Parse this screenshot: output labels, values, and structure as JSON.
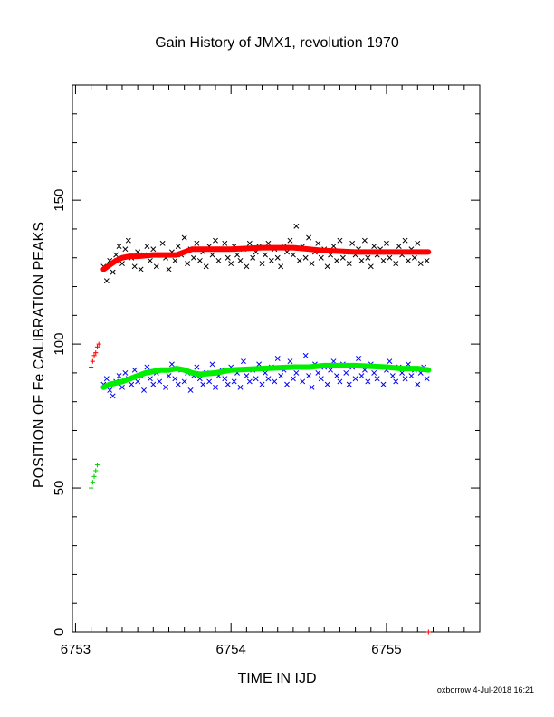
{
  "chart_data": {
    "type": "scatter",
    "title": "Gain History of JMX1, revolution 1970",
    "xlabel": "TIME IN IJD",
    "ylabel": "POSITION OF Fe CALIBRATION PEAKS",
    "xlim": [
      6752.98,
      6755.6
    ],
    "ylim": [
      0,
      190
    ],
    "xticks": [
      6753,
      6754,
      6755
    ],
    "yticks": [
      0,
      50,
      100,
      150
    ],
    "grid": false,
    "legend": "none",
    "series": [
      {
        "color": "#000000",
        "marker": "x",
        "x": [
          6753.18,
          6753.2,
          6753.22,
          6753.24,
          6753.26,
          6753.28,
          6753.3,
          6753.32,
          6753.34,
          6753.36,
          6753.38,
          6753.4,
          6753.42,
          6753.44,
          6753.46,
          6753.48,
          6753.5,
          6753.52,
          6753.54,
          6753.56,
          6753.58,
          6753.6,
          6753.62,
          6753.64,
          6753.66,
          6753.68,
          6753.7,
          6753.72,
          6753.74,
          6753.76,
          6753.78,
          6753.8,
          6753.82,
          6753.84,
          6753.86,
          6753.88,
          6753.9,
          6753.92,
          6753.94,
          6753.96,
          6753.98,
          6754.0,
          6754.02,
          6754.04,
          6754.06,
          6754.08,
          6754.1,
          6754.12,
          6754.14,
          6754.16,
          6754.18,
          6754.2,
          6754.22,
          6754.24,
          6754.26,
          6754.28,
          6754.3,
          6754.32,
          6754.34,
          6754.36,
          6754.38,
          6754.4,
          6754.42,
          6754.44,
          6754.46,
          6754.48,
          6754.5,
          6754.52,
          6754.54,
          6754.56,
          6754.58,
          6754.6,
          6754.62,
          6754.64,
          6754.66,
          6754.68,
          6754.7,
          6754.72,
          6754.74,
          6754.76,
          6754.78,
          6754.8,
          6754.82,
          6754.84,
          6754.86,
          6754.88,
          6754.9,
          6754.92,
          6754.94,
          6754.96,
          6754.98,
          6755.0,
          6755.02,
          6755.04,
          6755.06,
          6755.08,
          6755.1,
          6755.12,
          6755.14,
          6755.16,
          6755.18,
          6755.2,
          6755.22,
          6755.24,
          6755.26
        ],
        "y": [
          127,
          122,
          129,
          125,
          131,
          134,
          128,
          133,
          136,
          130,
          127,
          132,
          126,
          131,
          134,
          129,
          133,
          127,
          131,
          135,
          130,
          126,
          132,
          129,
          134,
          131,
          137,
          128,
          133,
          130,
          135,
          129,
          132,
          127,
          134,
          131,
          136,
          129,
          133,
          135,
          130,
          128,
          134,
          131,
          129,
          133,
          127,
          135,
          130,
          132,
          134,
          128,
          131,
          135,
          129,
          133,
          130,
          127,
          134,
          132,
          136,
          131,
          141,
          129,
          134,
          130,
          137,
          128,
          132,
          135,
          130,
          133,
          127,
          131,
          134,
          129,
          136,
          130,
          132,
          128,
          135,
          131,
          133,
          129,
          136,
          130,
          127,
          134,
          131,
          133,
          129,
          135,
          130,
          132,
          128,
          134,
          131,
          136,
          129,
          133,
          130,
          135,
          128,
          132,
          129
        ]
      },
      {
        "color": "#0000ff",
        "marker": "x",
        "x": [
          6753.18,
          6753.2,
          6753.22,
          6753.24,
          6753.26,
          6753.28,
          6753.3,
          6753.32,
          6753.34,
          6753.36,
          6753.38,
          6753.4,
          6753.42,
          6753.44,
          6753.46,
          6753.48,
          6753.5,
          6753.52,
          6753.54,
          6753.56,
          6753.58,
          6753.6,
          6753.62,
          6753.64,
          6753.66,
          6753.68,
          6753.7,
          6753.72,
          6753.74,
          6753.76,
          6753.78,
          6753.8,
          6753.82,
          6753.84,
          6753.86,
          6753.88,
          6753.9,
          6753.92,
          6753.94,
          6753.96,
          6753.98,
          6754.0,
          6754.02,
          6754.04,
          6754.06,
          6754.08,
          6754.1,
          6754.12,
          6754.14,
          6754.16,
          6754.18,
          6754.2,
          6754.22,
          6754.24,
          6754.26,
          6754.28,
          6754.3,
          6754.32,
          6754.34,
          6754.36,
          6754.38,
          6754.4,
          6754.42,
          6754.44,
          6754.46,
          6754.48,
          6754.5,
          6754.52,
          6754.54,
          6754.56,
          6754.58,
          6754.6,
          6754.62,
          6754.64,
          6754.66,
          6754.68,
          6754.7,
          6754.72,
          6754.74,
          6754.76,
          6754.78,
          6754.8,
          6754.82,
          6754.84,
          6754.86,
          6754.88,
          6754.9,
          6754.92,
          6754.94,
          6754.96,
          6754.98,
          6755.0,
          6755.02,
          6755.04,
          6755.06,
          6755.08,
          6755.1,
          6755.12,
          6755.14,
          6755.16,
          6755.18,
          6755.2,
          6755.22,
          6755.24,
          6755.26
        ],
        "y": [
          86,
          88,
          84,
          82,
          87,
          89,
          85,
          90,
          88,
          86,
          91,
          87,
          89,
          84,
          92,
          88,
          86,
          90,
          87,
          91,
          85,
          89,
          93,
          88,
          86,
          91,
          87,
          90,
          84,
          89,
          92,
          88,
          86,
          90,
          87,
          93,
          85,
          89,
          91,
          88,
          86,
          92,
          87,
          90,
          85,
          94,
          89,
          87,
          91,
          88,
          93,
          86,
          90,
          88,
          92,
          87,
          95,
          89,
          91,
          86,
          94,
          88,
          90,
          92,
          87,
          96,
          89,
          85,
          93,
          90,
          88,
          92,
          86,
          91,
          94,
          89,
          87,
          93,
          90,
          86,
          92,
          88,
          95,
          89,
          91,
          87,
          93,
          90,
          88,
          92,
          86,
          91,
          94,
          89,
          87,
          92,
          90,
          88,
          93,
          89,
          91,
          86,
          90,
          92,
          88
        ]
      },
      {
        "color": "#ff0000",
        "marker": "line",
        "x": [
          6753.18,
          6753.22,
          6753.26,
          6753.3,
          6753.35,
          6753.4,
          6753.5,
          6753.6,
          6753.65,
          6753.7,
          6753.75,
          6753.8,
          6753.9,
          6754.0,
          6754.2,
          6754.4,
          6754.5,
          6754.6,
          6754.8,
          6755.0,
          6755.1,
          6755.2,
          6755.27
        ],
        "y": [
          126,
          127.5,
          129,
          130,
          130.5,
          130.5,
          131,
          131,
          131,
          132,
          133,
          133,
          133,
          133,
          133.5,
          133.5,
          133,
          132.5,
          132,
          132,
          132,
          132,
          132
        ]
      },
      {
        "color": "#00ee00",
        "marker": "line",
        "x": [
          6753.18,
          6753.22,
          6753.26,
          6753.3,
          6753.35,
          6753.4,
          6753.45,
          6753.5,
          6753.55,
          6753.6,
          6753.65,
          6753.7,
          6753.75,
          6753.8,
          6753.9,
          6754.0,
          6754.2,
          6754.4,
          6754.5,
          6754.6,
          6754.8,
          6755.0,
          6755.1,
          6755.2,
          6755.27
        ],
        "y": [
          85,
          86,
          86.5,
          87,
          88,
          89,
          90,
          90.5,
          91,
          91,
          91.5,
          91,
          90,
          89.5,
          90,
          91,
          91.5,
          92,
          92,
          92.5,
          92.5,
          92,
          91.5,
          91.5,
          91
        ]
      },
      {
        "color": "#ff0000",
        "marker": "plus",
        "x": [
          6753.1,
          6753.11,
          6753.12,
          6753.13,
          6753.14,
          6753.15
        ],
        "y": [
          92,
          94,
          96,
          97,
          99,
          100
        ]
      },
      {
        "color": "#00cc00",
        "marker": "plus",
        "x": [
          6753.1,
          6753.11,
          6753.12,
          6753.13,
          6753.14
        ],
        "y": [
          50,
          52,
          54,
          56,
          58
        ]
      },
      {
        "color": "#ff0000",
        "marker": "plus",
        "x": [
          6755.27
        ],
        "y": [
          0
        ]
      }
    ]
  },
  "footer": "oxborrow  4-Jul-2018 16:21"
}
